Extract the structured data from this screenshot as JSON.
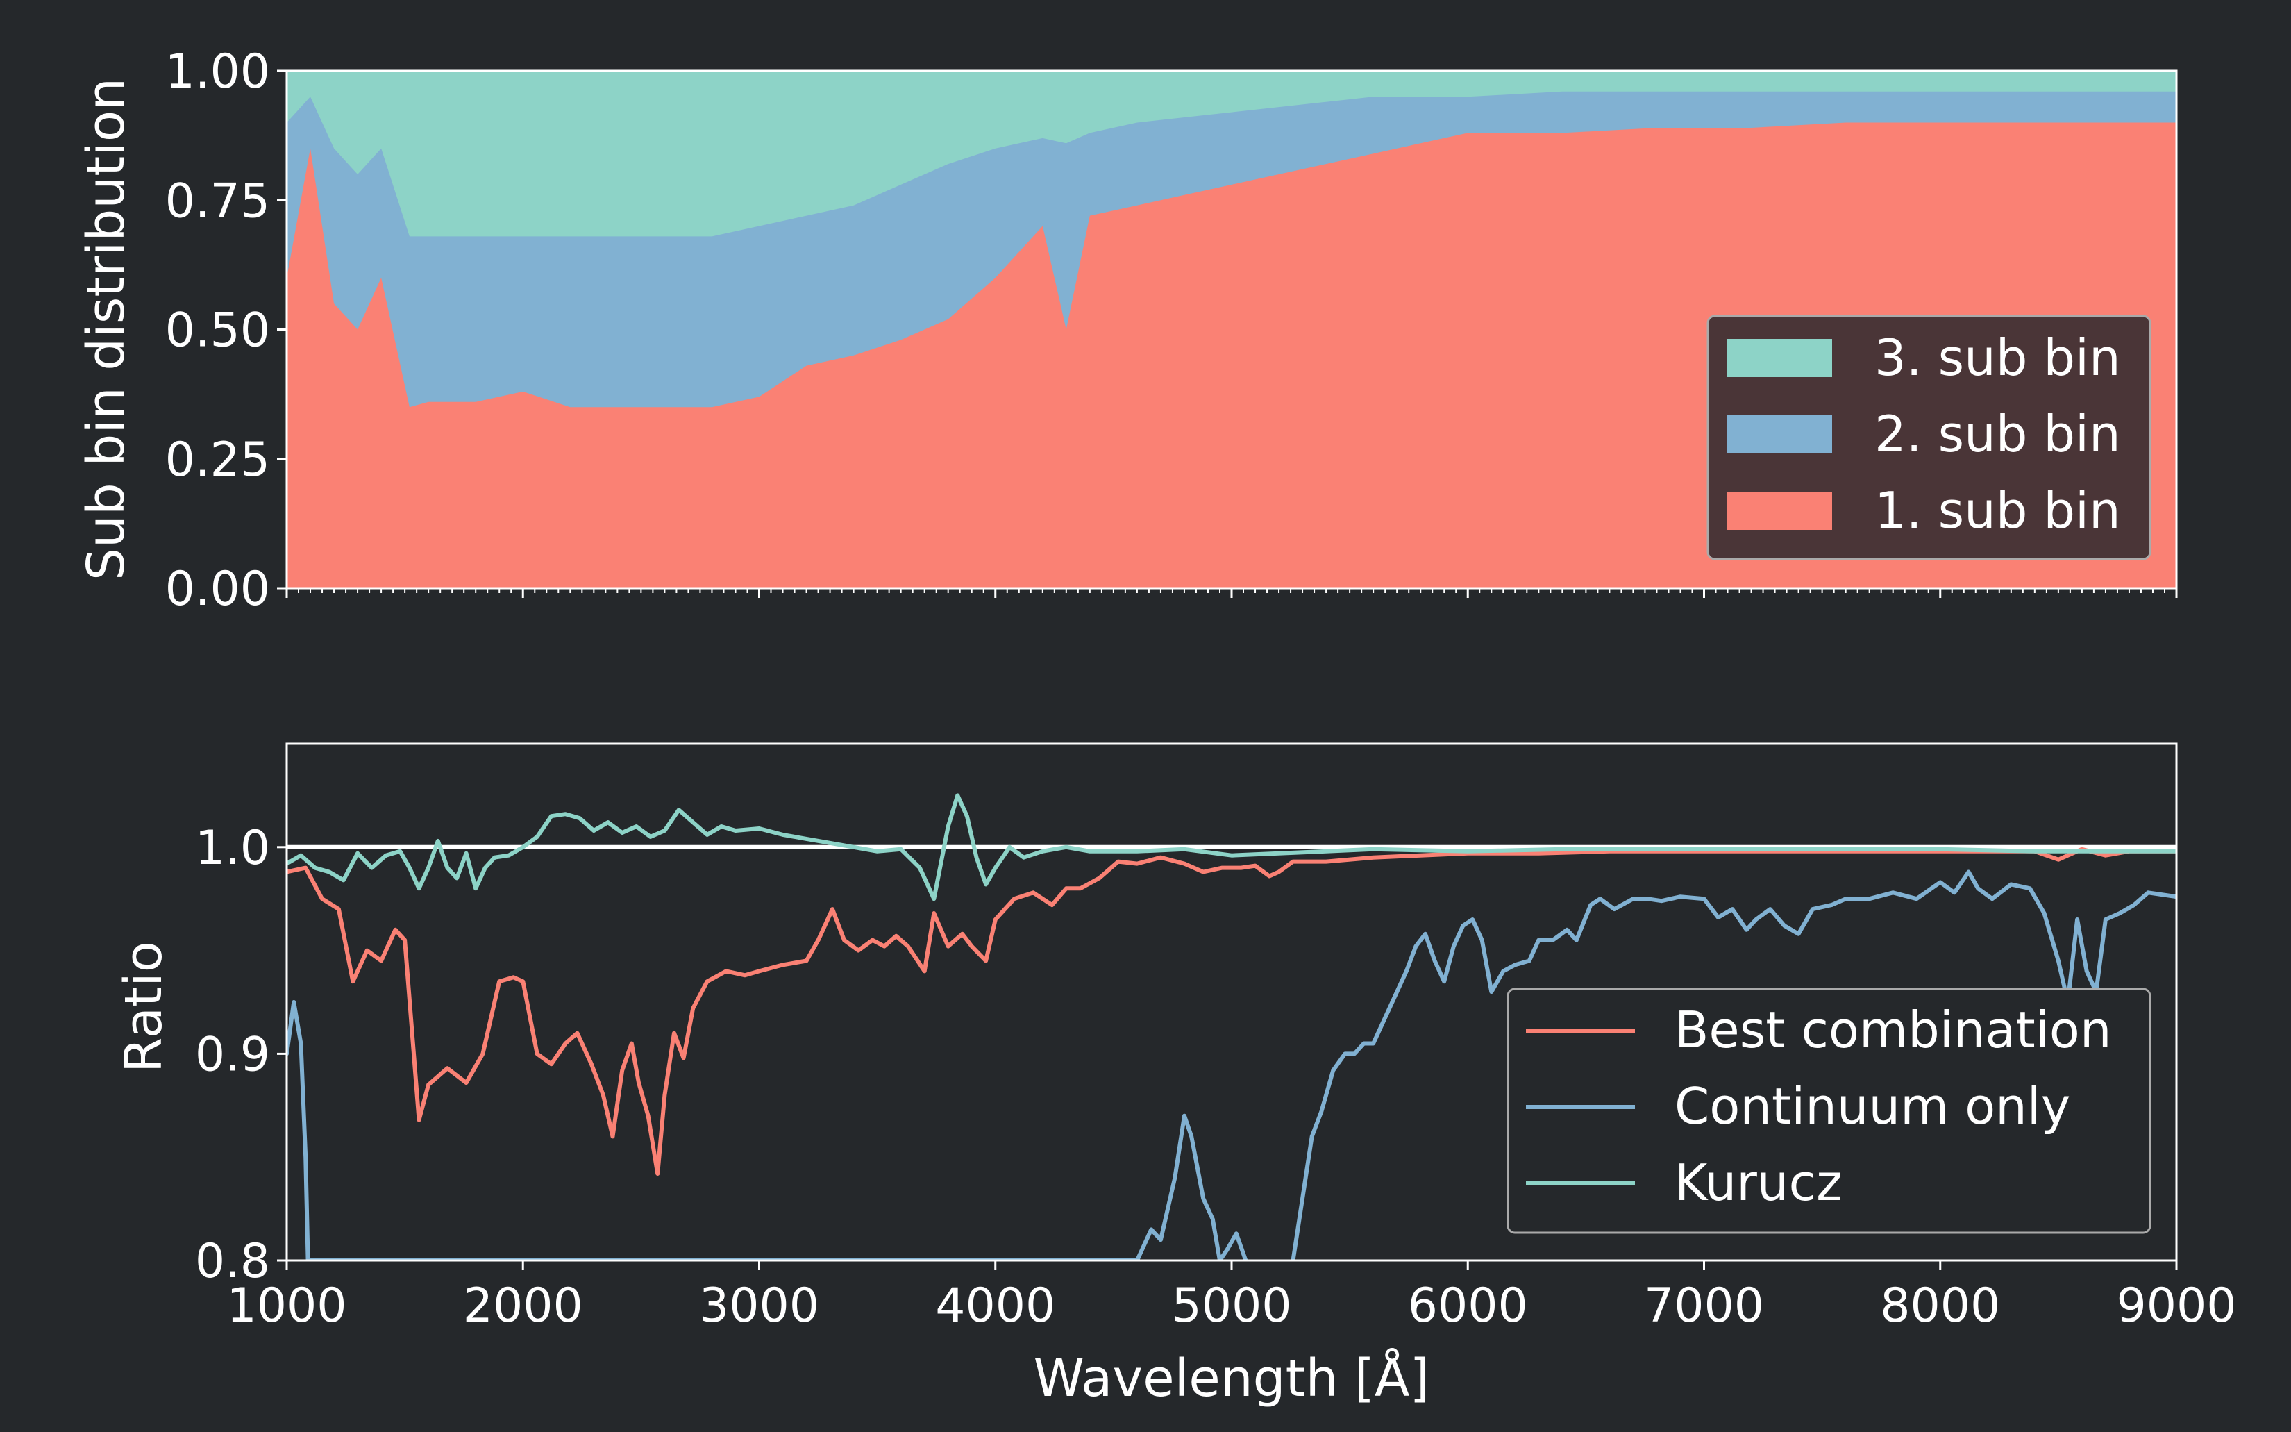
{
  "colors": {
    "background": "#25282b",
    "sub_bin_1": "#fa8174",
    "sub_bin_2": "#81b1d2",
    "sub_bin_3": "#8dd3c7",
    "best_combination": "#fa8174",
    "continuum_only": "#81b1d2",
    "kurucz": "#8dd3c7",
    "reference_line": "#ffffff",
    "legend_bg_top": "#4a3537",
    "legend_bg_bottom": "#25282b"
  },
  "chart_data": [
    {
      "type": "area",
      "subtype": "stacked",
      "xlabel": "",
      "ylabel": "Sub bin distribution",
      "xlim": [
        1000,
        9000
      ],
      "ylim": [
        0,
        1
      ],
      "yticks": [
        0,
        0.25,
        0.5,
        0.75,
        1
      ],
      "ytick_labels": [
        "0.00",
        "0.25",
        "0.50",
        "0.75",
        "1.00"
      ],
      "legend": {
        "position": "right",
        "entries": [
          "3. sub bin",
          "2. sub bin",
          "1. sub bin"
        ]
      },
      "x": [
        1000,
        1100,
        1200,
        1300,
        1400,
        1520,
        1600,
        1800,
        2000,
        2200,
        2400,
        2600,
        2800,
        3000,
        3200,
        3400,
        3600,
        3800,
        4000,
        4200,
        4300,
        4400,
        4600,
        4800,
        5000,
        5200,
        5400,
        5600,
        5800,
        6000,
        6400,
        6800,
        7200,
        7600,
        8000,
        8400,
        8800,
        9000
      ],
      "series": [
        {
          "name": "1. sub bin",
          "cumulative_top": [
            0.6,
            0.85,
            0.55,
            0.5,
            0.6,
            0.35,
            0.36,
            0.36,
            0.38,
            0.35,
            0.35,
            0.35,
            0.35,
            0.37,
            0.43,
            0.45,
            0.48,
            0.52,
            0.6,
            0.7,
            0.5,
            0.72,
            0.74,
            0.76,
            0.78,
            0.8,
            0.82,
            0.84,
            0.86,
            0.88,
            0.88,
            0.89,
            0.89,
            0.9,
            0.9,
            0.9,
            0.9,
            0.9
          ]
        },
        {
          "name": "2. sub bin",
          "cumulative_top": [
            0.9,
            0.95,
            0.85,
            0.8,
            0.85,
            0.68,
            0.68,
            0.68,
            0.68,
            0.68,
            0.68,
            0.68,
            0.68,
            0.7,
            0.72,
            0.74,
            0.78,
            0.82,
            0.85,
            0.87,
            0.86,
            0.88,
            0.9,
            0.91,
            0.92,
            0.93,
            0.94,
            0.95,
            0.95,
            0.95,
            0.96,
            0.96,
            0.96,
            0.96,
            0.96,
            0.96,
            0.96,
            0.96
          ]
        },
        {
          "name": "3. sub bin",
          "cumulative_top": [
            1,
            1,
            1,
            1,
            1,
            1,
            1,
            1,
            1,
            1,
            1,
            1,
            1,
            1,
            1,
            1,
            1,
            1,
            1,
            1,
            1,
            1,
            1,
            1,
            1,
            1,
            1,
            1,
            1,
            1,
            1,
            1,
            1,
            1,
            1,
            1,
            1,
            1
          ]
        }
      ]
    },
    {
      "type": "line",
      "xlabel": "Wavelength [Å]",
      "ylabel": "Ratio",
      "xlim": [
        1000,
        9000
      ],
      "ylim": [
        0.8,
        1.05
      ],
      "xticks": [
        1000,
        2000,
        3000,
        4000,
        5000,
        6000,
        7000,
        8000,
        9000
      ],
      "xtick_labels": [
        "1000",
        "2000",
        "3000",
        "4000",
        "5000",
        "6000",
        "7000",
        "8000",
        "9000"
      ],
      "yticks": [
        0.8,
        0.9,
        1.0
      ],
      "ytick_labels": [
        "0.8",
        "0.9",
        "1.0"
      ],
      "reference_line": 1.0,
      "legend": {
        "position": "lower right",
        "entries": [
          "Best combination",
          "Continuum only",
          "Kurucz"
        ]
      },
      "series": [
        {
          "name": "Best combination",
          "x": [
            1000,
            1080,
            1150,
            1220,
            1280,
            1340,
            1400,
            1460,
            1500,
            1560,
            1600,
            1680,
            1760,
            1830,
            1900,
            1960,
            2000,
            2060,
            2120,
            2180,
            2230,
            2290,
            2340,
            2380,
            2420,
            2460,
            2490,
            2530,
            2570,
            2600,
            2640,
            2680,
            2720,
            2780,
            2860,
            2940,
            3000,
            3100,
            3200,
            3250,
            3310,
            3360,
            3420,
            3480,
            3530,
            3580,
            3630,
            3700,
            3740,
            3800,
            3860,
            3900,
            3960,
            4000,
            4080,
            4160,
            4240,
            4300,
            4360,
            4440,
            4520,
            4600,
            4700,
            4800,
            4880,
            4960,
            5040,
            5100,
            5160,
            5200,
            5260,
            5400,
            5600,
            5800,
            6000,
            6300,
            6600,
            7000,
            7400,
            7800,
            8200,
            8400,
            8500,
            8600,
            8700,
            8800,
            9000
          ],
          "y": [
            0.988,
            0.99,
            0.975,
            0.97,
            0.935,
            0.95,
            0.945,
            0.96,
            0.955,
            0.868,
            0.885,
            0.893,
            0.886,
            0.9,
            0.935,
            0.937,
            0.935,
            0.9,
            0.895,
            0.905,
            0.91,
            0.895,
            0.88,
            0.86,
            0.892,
            0.905,
            0.886,
            0.87,
            0.842,
            0.88,
            0.91,
            0.898,
            0.922,
            0.935,
            0.94,
            0.938,
            0.94,
            0.943,
            0.945,
            0.955,
            0.97,
            0.955,
            0.95,
            0.955,
            0.952,
            0.957,
            0.952,
            0.94,
            0.968,
            0.952,
            0.958,
            0.952,
            0.945,
            0.965,
            0.975,
            0.978,
            0.972,
            0.98,
            0.98,
            0.985,
            0.993,
            0.992,
            0.995,
            0.992,
            0.988,
            0.99,
            0.99,
            0.991,
            0.986,
            0.988,
            0.993,
            0.993,
            0.995,
            0.996,
            0.997,
            0.997,
            0.998,
            0.998,
            0.998,
            0.998,
            0.998,
            0.998,
            0.994,
            0.999,
            0.996,
            0.998,
            0.998
          ]
        },
        {
          "name": "Continuum only",
          "x": [
            1000,
            1030,
            1060,
            1080,
            1090,
            4600,
            4660,
            4700,
            4760,
            4800,
            4830,
            4880,
            4920,
            4950,
            4980,
            5020,
            5060,
            5090,
            5110,
            5260,
            5300,
            5340,
            5380,
            5430,
            5480,
            5520,
            5560,
            5600,
            5660,
            5700,
            5740,
            5780,
            5820,
            5860,
            5900,
            5940,
            5980,
            6020,
            6060,
            6100,
            6150,
            6200,
            6260,
            6300,
            6360,
            6420,
            6460,
            6520,
            6560,
            6620,
            6700,
            6760,
            6820,
            6900,
            7000,
            7060,
            7120,
            7180,
            7220,
            7280,
            7340,
            7400,
            7460,
            7540,
            7600,
            7700,
            7800,
            7900,
            8000,
            8060,
            8120,
            8160,
            8220,
            8300,
            8380,
            8440,
            8500,
            8540,
            8580,
            8620,
            8660,
            8700,
            8760,
            8820,
            8880,
            9000
          ],
          "y": [
            0.9,
            0.925,
            0.905,
            0.85,
            0.8,
            0.8,
            0.815,
            0.81,
            0.84,
            0.87,
            0.86,
            0.83,
            0.82,
            0.8,
            0.805,
            0.813,
            0.8,
            0.79,
            0.79,
            0.8,
            0.83,
            0.86,
            0.872,
            0.892,
            0.9,
            0.9,
            0.905,
            0.905,
            0.92,
            0.93,
            0.94,
            0.952,
            0.958,
            0.945,
            0.935,
            0.952,
            0.962,
            0.965,
            0.955,
            0.93,
            0.94,
            0.943,
            0.945,
            0.955,
            0.955,
            0.96,
            0.955,
            0.972,
            0.975,
            0.97,
            0.975,
            0.975,
            0.974,
            0.976,
            0.975,
            0.966,
            0.97,
            0.96,
            0.965,
            0.97,
            0.962,
            0.958,
            0.97,
            0.972,
            0.975,
            0.975,
            0.978,
            0.975,
            0.983,
            0.978,
            0.988,
            0.98,
            0.975,
            0.982,
            0.98,
            0.968,
            0.945,
            0.925,
            0.965,
            0.94,
            0.93,
            0.965,
            0.968,
            0.972,
            0.978,
            0.976
          ]
        },
        {
          "name": "Kurucz",
          "x": [
            1000,
            1060,
            1120,
            1180,
            1240,
            1300,
            1360,
            1420,
            1480,
            1520,
            1560,
            1600,
            1640,
            1680,
            1720,
            1760,
            1800,
            1840,
            1880,
            1940,
            2000,
            2060,
            2120,
            2180,
            2240,
            2300,
            2360,
            2420,
            2480,
            2540,
            2600,
            2660,
            2720,
            2780,
            2840,
            2900,
            3000,
            3100,
            3200,
            3300,
            3400,
            3500,
            3600,
            3680,
            3740,
            3800,
            3840,
            3880,
            3920,
            3960,
            4000,
            4060,
            4120,
            4200,
            4300,
            4400,
            4600,
            4800,
            5000,
            5200,
            5400,
            5600,
            6000,
            6400,
            6800,
            7200,
            7600,
            8000,
            8400,
            8800,
            9000
          ],
          "y": [
            0.992,
            0.996,
            0.99,
            0.988,
            0.984,
            0.997,
            0.99,
            0.996,
            0.998,
            0.99,
            0.98,
            0.99,
            1.003,
            0.99,
            0.985,
            0.997,
            0.98,
            0.99,
            0.995,
            0.996,
            1.0,
            1.005,
            1.015,
            1.016,
            1.014,
            1.008,
            1.012,
            1.007,
            1.01,
            1.005,
            1.008,
            1.018,
            1.012,
            1.006,
            1.01,
            1.008,
            1.009,
            1.006,
            1.004,
            1.002,
            1.0,
            0.998,
            0.999,
            0.99,
            0.975,
            1.01,
            1.025,
            1.015,
            0.995,
            0.982,
            0.99,
            1.0,
            0.995,
            0.998,
            1.0,
            0.998,
            0.998,
            0.999,
            0.996,
            0.997,
            0.998,
            0.999,
            0.998,
            0.999,
            0.999,
            0.999,
            0.999,
            0.999,
            0.998,
            0.998,
            0.998
          ]
        }
      ]
    }
  ]
}
